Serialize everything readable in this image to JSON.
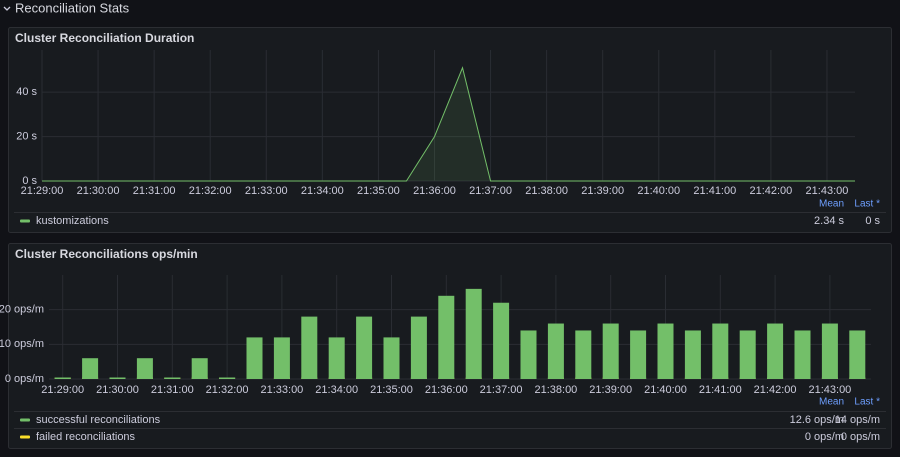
{
  "section_title": "Reconciliation Stats",
  "chart_data": [
    {
      "type": "line",
      "title": "Cluster Reconciliation Duration",
      "x": [
        "21:29:00",
        "21:29:30",
        "21:30:00",
        "21:30:30",
        "21:31:00",
        "21:31:30",
        "21:32:00",
        "21:32:30",
        "21:33:00",
        "21:33:30",
        "21:34:00",
        "21:34:30",
        "21:35:00",
        "21:35:30",
        "21:36:00",
        "21:36:30",
        "21:37:00",
        "21:37:30",
        "21:38:00",
        "21:38:30",
        "21:39:00",
        "21:39:30",
        "21:40:00",
        "21:40:30",
        "21:41:00",
        "21:41:30",
        "21:42:00",
        "21:42:30",
        "21:43:00",
        "21:43:30"
      ],
      "series": [
        {
          "name": "kustomizations",
          "color": "#73bf69",
          "values": [
            0,
            0,
            0,
            0,
            0,
            0,
            0,
            0,
            0,
            0,
            0,
            0,
            0,
            0,
            20,
            51,
            0,
            0,
            0,
            0,
            0,
            0,
            0,
            0,
            0,
            0,
            0,
            0,
            0,
            0
          ],
          "legend_values": [
            "2.34 s",
            "0 s"
          ]
        }
      ],
      "legend_columns": [
        "Mean",
        "Last *"
      ],
      "xlim": [
        "21:29:00",
        "21:43:30"
      ],
      "xticks": [
        "21:29:00",
        "21:30:00",
        "21:31:00",
        "21:32:00",
        "21:33:00",
        "21:34:00",
        "21:35:00",
        "21:36:00",
        "21:37:00",
        "21:38:00",
        "21:39:00",
        "21:40:00",
        "21:41:00",
        "21:42:00",
        "21:43:00"
      ],
      "ylim": [
        0,
        59
      ],
      "yticks": [
        {
          "value": 0,
          "label": "0 s"
        },
        {
          "value": 20,
          "label": "20 s"
        },
        {
          "value": 40,
          "label": "40 s"
        }
      ],
      "grid": true
    },
    {
      "type": "bar",
      "title": "Cluster Reconciliations ops/min",
      "x": [
        "21:29:00",
        "21:29:30",
        "21:30:00",
        "21:30:30",
        "21:31:00",
        "21:31:30",
        "21:32:00",
        "21:32:30",
        "21:33:00",
        "21:33:30",
        "21:34:00",
        "21:34:30",
        "21:35:00",
        "21:35:30",
        "21:36:00",
        "21:36:30",
        "21:37:00",
        "21:37:30",
        "21:38:00",
        "21:38:30",
        "21:39:00",
        "21:39:30",
        "21:40:00",
        "21:40:30",
        "21:41:00",
        "21:41:30",
        "21:42:00",
        "21:42:30",
        "21:43:00",
        "21:43:30"
      ],
      "series": [
        {
          "name": "successful reconciliations",
          "color": "#73bf69",
          "values": [
            0,
            6,
            0,
            6,
            0,
            6,
            0,
            12,
            12,
            18,
            12,
            18,
            12,
            18,
            24,
            26,
            22,
            14,
            16,
            14,
            16,
            14,
            16,
            14,
            16,
            14,
            16,
            14,
            16,
            14
          ],
          "legend_values": [
            "12.6 ops/m",
            "14 ops/m"
          ]
        },
        {
          "name": "failed reconciliations",
          "color": "#fade2a",
          "values": [
            0,
            0,
            0,
            0,
            0,
            0,
            0,
            0,
            0,
            0,
            0,
            0,
            0,
            0,
            0,
            0,
            0,
            0,
            0,
            0,
            0,
            0,
            0,
            0,
            0,
            0,
            0,
            0,
            0,
            0
          ],
          "legend_values": [
            "0 ops/m",
            "0 ops/m"
          ]
        }
      ],
      "legend_columns": [
        "Mean",
        "Last *"
      ],
      "xlim": [
        "21:28:45",
        "21:43:45"
      ],
      "xticks": [
        "21:29:00",
        "21:30:00",
        "21:31:00",
        "21:32:00",
        "21:33:00",
        "21:34:00",
        "21:35:00",
        "21:36:00",
        "21:37:00",
        "21:38:00",
        "21:39:00",
        "21:40:00",
        "21:41:00",
        "21:42:00",
        "21:43:00"
      ],
      "ylim": [
        0,
        30
      ],
      "yticks": [
        {
          "value": 0,
          "label": "0 ops/m"
        },
        {
          "value": 10,
          "label": "10 ops/m"
        },
        {
          "value": 20,
          "label": "20 ops/m"
        }
      ],
      "grid": true
    }
  ]
}
